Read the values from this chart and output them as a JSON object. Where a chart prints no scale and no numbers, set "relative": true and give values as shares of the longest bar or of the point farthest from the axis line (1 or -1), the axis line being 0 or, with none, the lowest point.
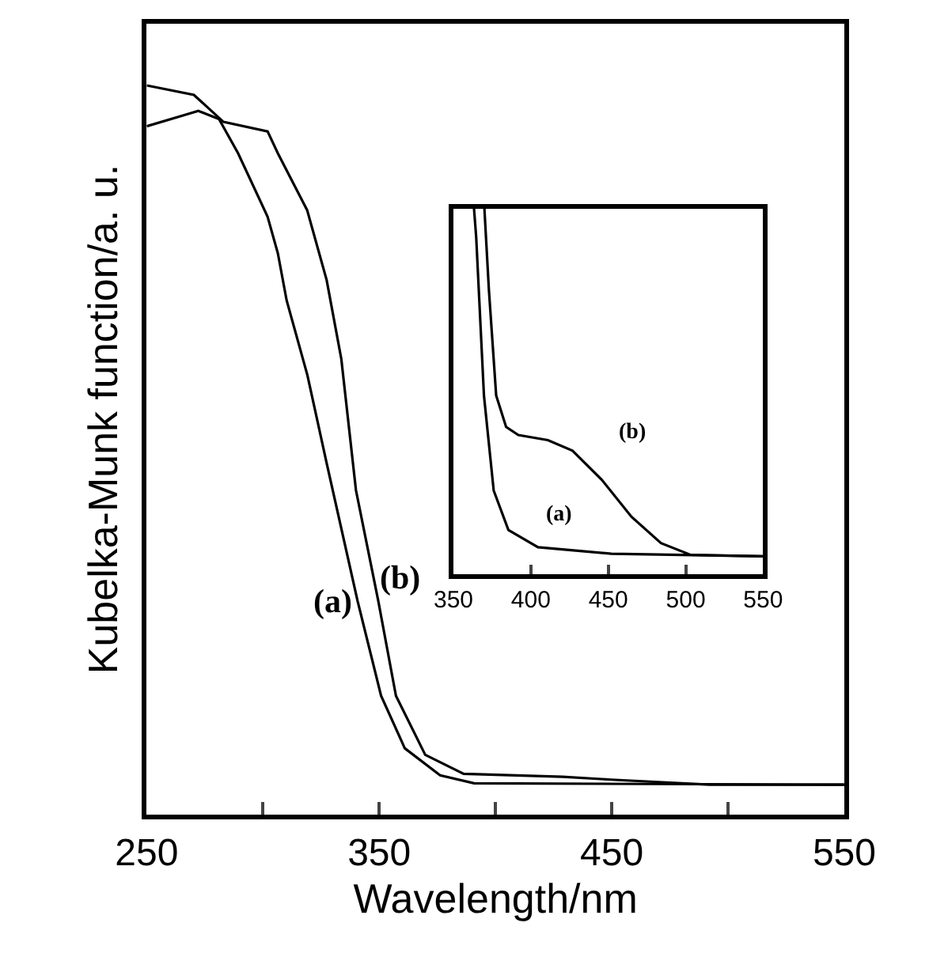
{
  "chart_data": [
    {
      "type": "line",
      "relative": true,
      "xlabel": "Wavelength/nm",
      "ylabel": "Kubelka-Munk function/a. u.",
      "xlim": [
        250,
        550
      ],
      "xticks": [
        250,
        {
          "value": 300,
          "label": null
        },
        350,
        {
          "value": 400,
          "label": null
        },
        450,
        {
          "value": 500,
          "label": null
        },
        550
      ],
      "marker": "none",
      "line_style": "solid",
      "series": [
        {
          "name": "(a)",
          "color": "#000000",
          "x": [
            250,
            265.9,
            272.2,
            281.1,
            289.3,
            302,
            306.4,
            310.2,
            319.1,
            327.4,
            340.7,
            350.8,
            361,
            376.2,
            390.8,
            550
          ],
          "values": [
            0.944,
            0.959,
            0.965,
            0.954,
            0.907,
            0.82,
            0.77,
            0.705,
            0.603,
            0.482,
            0.293,
            0.163,
            0.091,
            0.054,
            0.043,
            0.041
          ]
        },
        {
          "name": "(b)",
          "color": "#000000",
          "x": [
            250,
            270.3,
            283,
            302,
            306.4,
            319,
            327.4,
            333.7,
            340,
            349.6,
            357.2,
            369.8,
            386.3,
            428.8,
            449.7,
            492,
            550
          ],
          "values": [
            1,
            0.987,
            0.95,
            0.937,
            0.907,
            0.829,
            0.733,
            0.625,
            0.445,
            0.293,
            0.163,
            0.082,
            0.056,
            0.052,
            0.048,
            0.041,
            0.041
          ]
        }
      ]
    },
    {
      "type": "line",
      "relative": true,
      "xlim": [
        350,
        550
      ],
      "xticks": [
        350,
        400,
        450,
        500,
        550
      ],
      "marker": "none",
      "line_style": "solid",
      "series": [
        {
          "name": "(a)",
          "color": "#000000",
          "x": [
            363.3,
            364.7,
            369.7,
            376,
            385.5,
            404.6,
            452,
            550
          ],
          "values": [
            1,
            0.922,
            0.489,
            0.229,
            0.121,
            0.074,
            0.056,
            0.049
          ]
        },
        {
          "name": "(b)",
          "color": "#000000",
          "x": [
            370,
            372.9,
            377.6,
            384,
            391.9,
            411,
            426.9,
            445.9,
            465,
            484,
            503,
            550
          ],
          "values": [
            1,
            0.778,
            0.489,
            0.403,
            0.381,
            0.367,
            0.338,
            0.258,
            0.157,
            0.085,
            0.053,
            0.049
          ]
        }
      ]
    }
  ]
}
